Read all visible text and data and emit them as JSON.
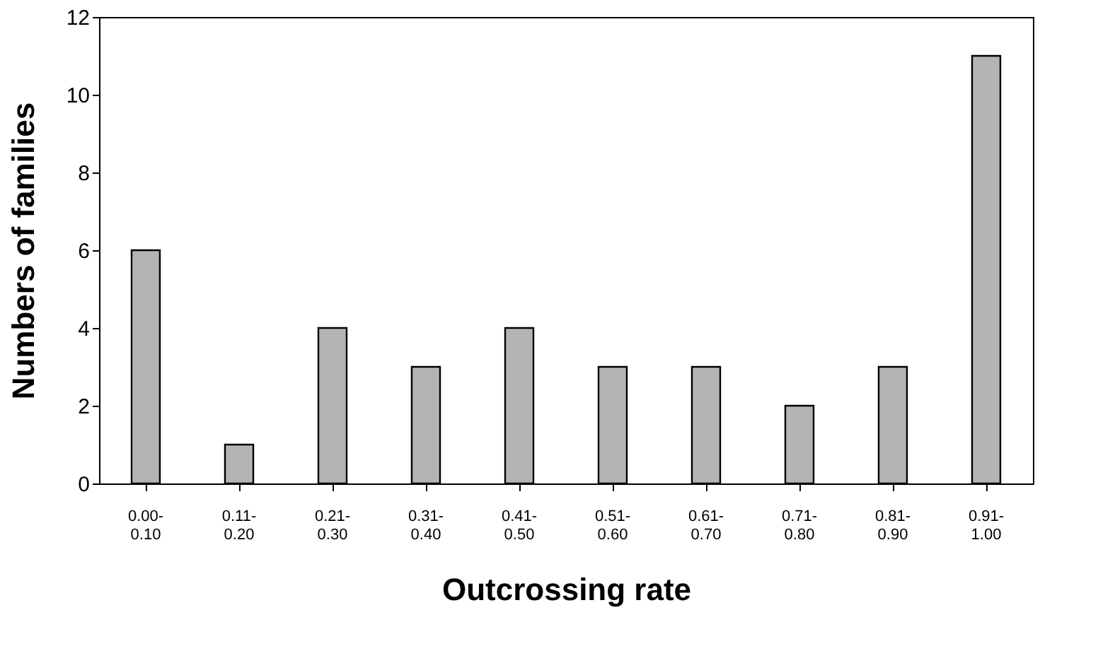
{
  "chart_data": {
    "type": "bar",
    "xlabel": "Outcrossing rate",
    "ylabel": "Numbers of families",
    "categories": [
      "0.00-\n0.10",
      "0.11-\n0.20",
      "0.21-\n0.30",
      "0.31-\n0.40",
      "0.41-\n0.50",
      "0.51-\n0.60",
      "0.61-\n0.70",
      "0.71-\n0.80",
      "0.81-\n0.90",
      "0.91-\n1.00"
    ],
    "values": [
      6,
      1,
      4,
      3,
      4,
      3,
      3,
      2,
      3,
      11
    ],
    "color": "#b4b4b4",
    "ylim": [
      0,
      12
    ],
    "yticks": [
      0,
      2,
      4,
      6,
      8,
      10,
      12
    ],
    "grid": false
  }
}
